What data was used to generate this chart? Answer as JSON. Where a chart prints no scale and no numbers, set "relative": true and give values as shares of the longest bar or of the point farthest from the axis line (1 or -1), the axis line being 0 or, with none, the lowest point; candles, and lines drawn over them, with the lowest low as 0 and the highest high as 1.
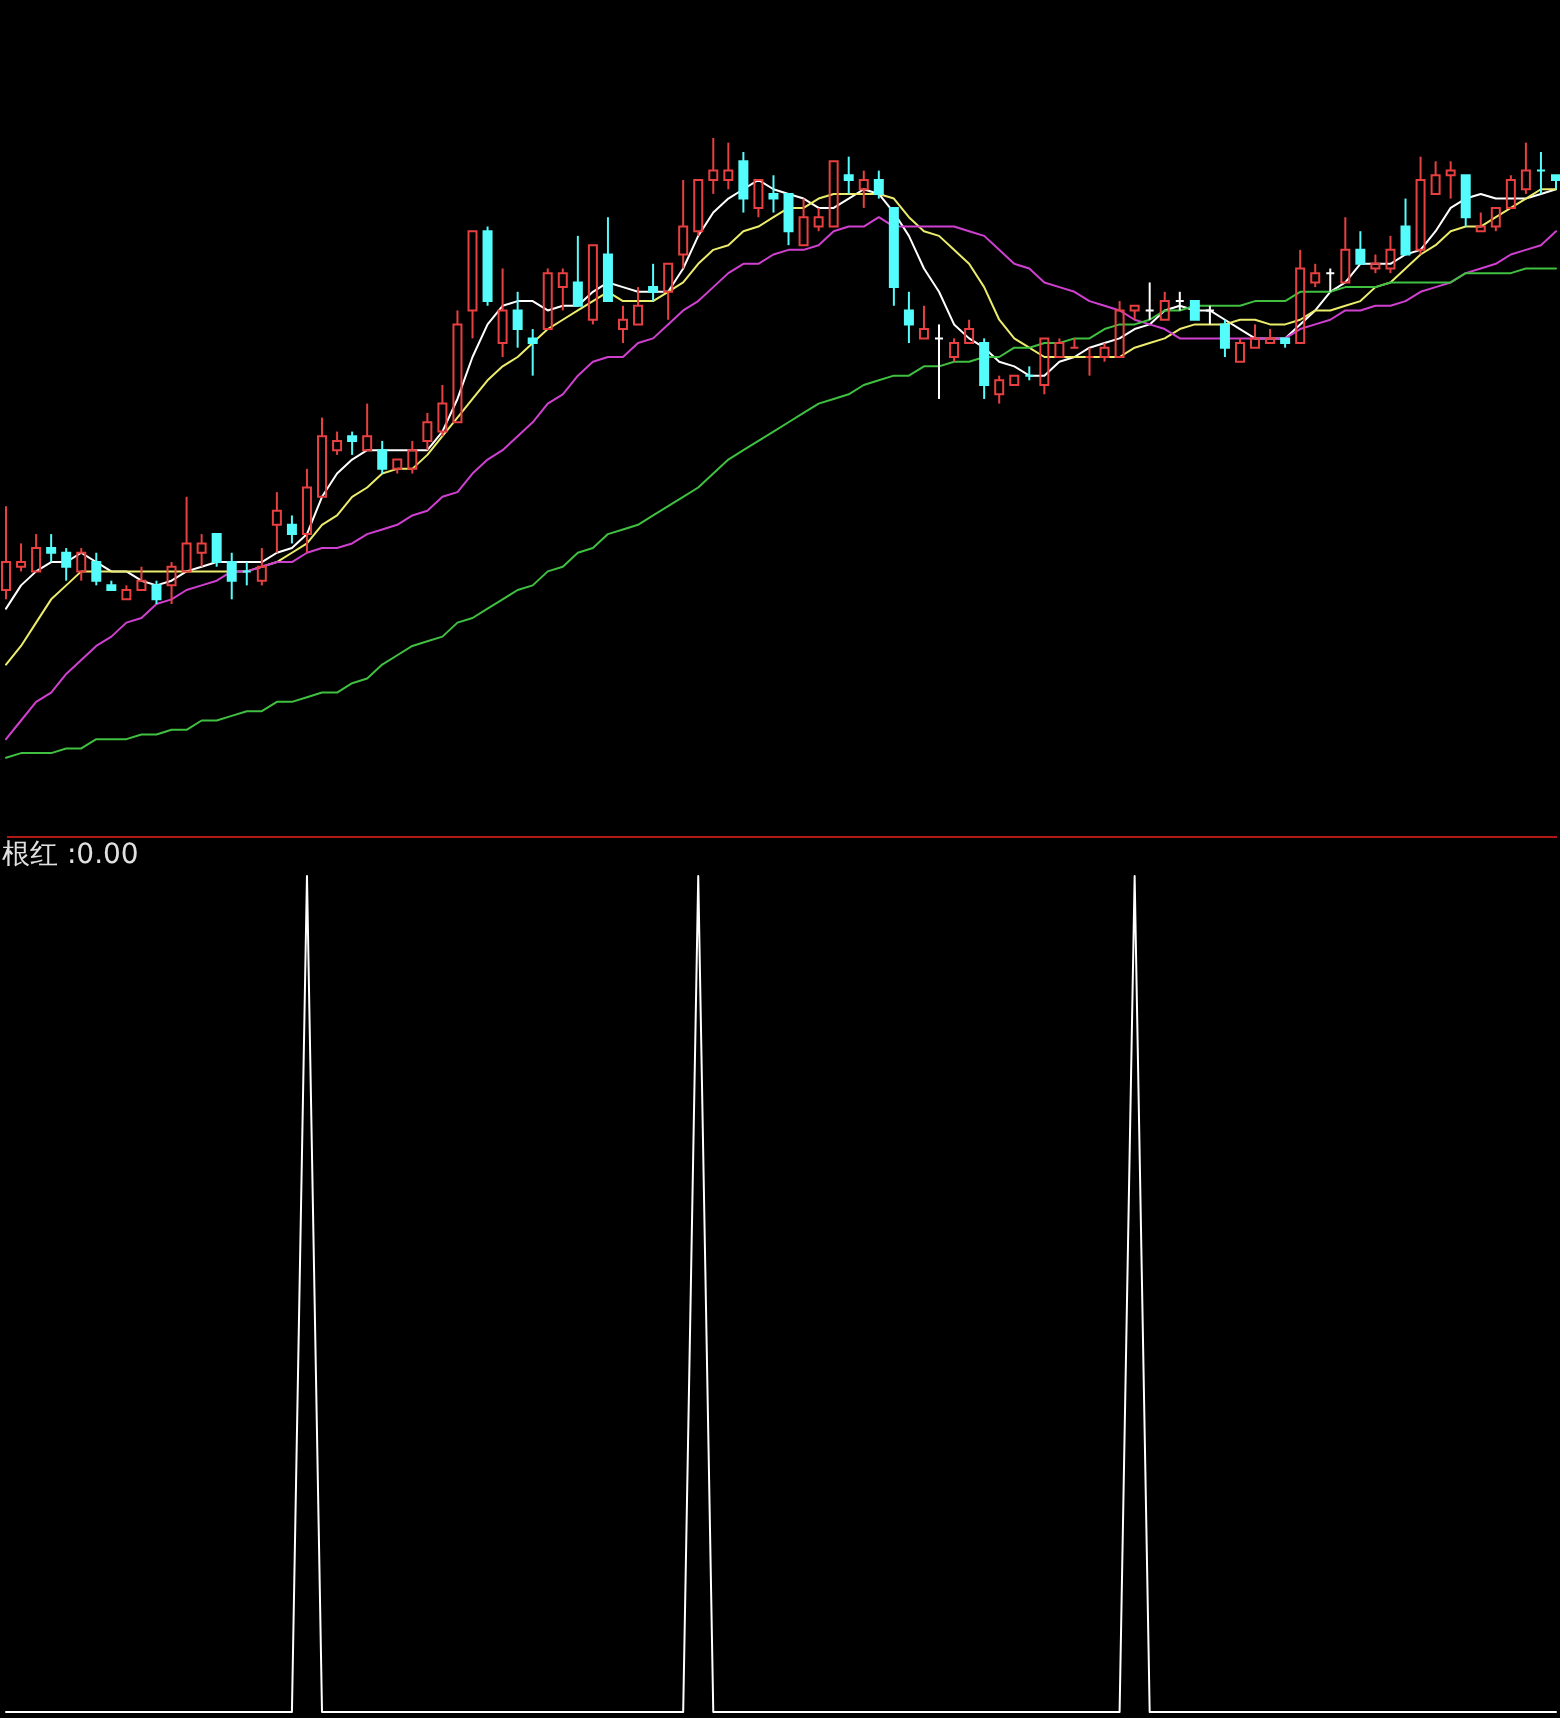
{
  "chart_data": [
    {
      "type": "candlestick",
      "relative": true,
      "categories": [
        null,
        null,
        null,
        null,
        null,
        null,
        null,
        null,
        null,
        null,
        null,
        null,
        null,
        null,
        null,
        null,
        null,
        null,
        null,
        null,
        null,
        null,
        null,
        null,
        null,
        null,
        null,
        null,
        null,
        null,
        null,
        null,
        null,
        null,
        null,
        null,
        null,
        null,
        null,
        null,
        null,
        null,
        null,
        null,
        null,
        null,
        null,
        null,
        null,
        null,
        null,
        null,
        null,
        null,
        null,
        null,
        null,
        null,
        null,
        null,
        null,
        null,
        null,
        null,
        null,
        null,
        null,
        null,
        null,
        null,
        null,
        null,
        null,
        null,
        null,
        null,
        null,
        null,
        null,
        null,
        null,
        null,
        null,
        null,
        null,
        null,
        null,
        null,
        null,
        null,
        null,
        null,
        null,
        null,
        null,
        null,
        null,
        null,
        null,
        null,
        null,
        null,
        null,
        null
      ],
      "ohlc": [
        [
          0.03,
          0.21,
          0.01,
          0.09
        ],
        [
          0.08,
          0.13,
          0.07,
          0.09
        ],
        [
          0.07,
          0.15,
          0.07,
          0.12
        ],
        [
          0.12,
          0.15,
          0.09,
          0.11
        ],
        [
          0.11,
          0.12,
          0.05,
          0.08
        ],
        [
          0.07,
          0.12,
          0.05,
          0.11
        ],
        [
          0.09,
          0.11,
          0.04,
          0.05
        ],
        [
          0.04,
          0.05,
          0.03,
          0.03
        ],
        [
          0.01,
          0.04,
          0.01,
          0.03
        ],
        [
          0.03,
          0.08,
          0.03,
          0.05
        ],
        [
          0.04,
          0.05,
          0,
          0.01
        ],
        [
          0.04,
          0.09,
          0,
          0.08
        ],
        [
          0.07,
          0.23,
          0.07,
          0.13
        ],
        [
          0.11,
          0.15,
          0.08,
          0.13
        ],
        [
          0.15,
          0.15,
          0.08,
          0.09
        ],
        [
          0.09,
          0.11,
          0.01,
          0.05
        ],
        [
          0.07,
          0.09,
          0.04,
          0.07
        ],
        [
          0.05,
          0.12,
          0.04,
          0.08
        ],
        [
          0.17,
          0.24,
          0.11,
          0.2
        ],
        [
          0.17,
          0.19,
          0.13,
          0.15
        ],
        [
          0.15,
          0.29,
          0.11,
          0.25
        ],
        [
          0.23,
          0.4,
          0.23,
          0.36
        ],
        [
          0.33,
          0.37,
          0.32,
          0.35
        ],
        [
          0.36,
          0.37,
          0.32,
          0.35
        ],
        [
          0.33,
          0.43,
          0.33,
          0.36
        ],
        [
          0.33,
          0.35,
          0.28,
          0.29
        ],
        [
          0.29,
          0.31,
          0.28,
          0.31
        ],
        [
          0.29,
          0.35,
          0.28,
          0.33
        ],
        [
          0.35,
          0.41,
          0.33,
          0.39
        ],
        [
          0.37,
          0.47,
          0.36,
          0.43
        ],
        [
          0.39,
          0.63,
          0.39,
          0.6
        ],
        [
          0.63,
          0.8,
          0.57,
          0.8
        ],
        [
          0.8,
          0.81,
          0.64,
          0.65
        ],
        [
          0.56,
          0.72,
          0.53,
          0.63
        ],
        [
          0.63,
          0.67,
          0.55,
          0.59
        ],
        [
          0.57,
          0.59,
          0.49,
          0.56
        ],
        [
          0.59,
          0.72,
          0.59,
          0.71
        ],
        [
          0.68,
          0.72,
          0.63,
          0.71
        ],
        [
          0.69,
          0.79,
          0.64,
          0.64
        ],
        [
          0.61,
          0.77,
          0.6,
          0.77
        ],
        [
          0.75,
          0.83,
          0.65,
          0.65
        ],
        [
          0.59,
          0.64,
          0.56,
          0.61
        ],
        [
          0.6,
          0.68,
          0.6,
          0.64
        ],
        [
          0.68,
          0.73,
          0.65,
          0.67
        ],
        [
          0.67,
          0.73,
          0.61,
          0.73
        ],
        [
          0.75,
          0.91,
          0.72,
          0.81
        ],
        [
          0.8,
          0.91,
          0.79,
          0.91
        ],
        [
          0.91,
          1,
          0.88,
          0.93
        ],
        [
          0.91,
          0.99,
          0.89,
          0.93
        ],
        [
          0.95,
          0.97,
          0.84,
          0.87
        ],
        [
          0.85,
          0.91,
          0.83,
          0.91
        ],
        [
          0.88,
          0.92,
          0.84,
          0.87
        ],
        [
          0.88,
          0.88,
          0.77,
          0.8
        ],
        [
          0.77,
          0.87,
          0.77,
          0.83
        ],
        [
          0.81,
          0.85,
          0.8,
          0.83
        ],
        [
          0.81,
          0.95,
          0.81,
          0.95
        ],
        [
          0.92,
          0.96,
          0.88,
          0.91
        ],
        [
          0.89,
          0.93,
          0.85,
          0.91
        ],
        [
          0.91,
          0.93,
          0.87,
          0.88
        ],
        [
          0.85,
          0.85,
          0.64,
          0.68
        ],
        [
          0.63,
          0.67,
          0.56,
          0.6
        ],
        [
          0.57,
          0.64,
          0.57,
          0.59
        ],
        [
          0.57,
          0.6,
          0.44,
          0.57
        ],
        [
          0.53,
          0.57,
          0.52,
          0.56
        ],
        [
          0.56,
          0.61,
          0.56,
          0.59
        ],
        [
          0.56,
          0.57,
          0.44,
          0.47
        ],
        [
          0.45,
          0.49,
          0.43,
          0.48
        ],
        [
          0.47,
          0.49,
          0.47,
          0.49
        ],
        [
          0.49,
          0.51,
          0.48,
          0.49
        ],
        [
          0.47,
          0.57,
          0.45,
          0.57
        ],
        [
          0.53,
          0.57,
          0.53,
          0.56
        ],
        [
          0.55,
          0.57,
          0.55,
          0.55
        ],
        [
          0.53,
          0.55,
          0.49,
          0.53
        ],
        [
          0.53,
          0.56,
          0.52,
          0.55
        ],
        [
          0.53,
          0.65,
          0.53,
          0.63
        ],
        [
          0.63,
          0.64,
          0.61,
          0.64
        ],
        [
          0.63,
          0.69,
          0.61,
          0.63
        ],
        [
          0.61,
          0.67,
          0.61,
          0.65
        ],
        [
          0.65,
          0.67,
          0.63,
          0.65
        ],
        [
          0.65,
          0.65,
          0.61,
          0.61
        ],
        [
          0.63,
          0.64,
          0.6,
          0.63
        ],
        [
          0.6,
          0.61,
          0.53,
          0.55
        ],
        [
          0.52,
          0.57,
          0.52,
          0.56
        ],
        [
          0.55,
          0.6,
          0.55,
          0.57
        ],
        [
          0.56,
          0.59,
          0.56,
          0.57
        ],
        [
          0.57,
          0.57,
          0.55,
          0.56
        ],
        [
          0.56,
          0.76,
          0.56,
          0.72
        ],
        [
          0.69,
          0.73,
          0.68,
          0.71
        ],
        [
          0.71,
          0.72,
          0.67,
          0.71
        ],
        [
          0.69,
          0.83,
          0.69,
          0.76
        ],
        [
          0.76,
          0.8,
          0.73,
          0.73
        ],
        [
          0.72,
          0.75,
          0.71,
          0.73
        ],
        [
          0.72,
          0.79,
          0.71,
          0.76
        ],
        [
          0.81,
          0.87,
          0.75,
          0.75
        ],
        [
          0.76,
          0.96,
          0.75,
          0.91
        ],
        [
          0.88,
          0.95,
          0.88,
          0.92
        ],
        [
          0.92,
          0.95,
          0.87,
          0.93
        ],
        [
          0.92,
          0.92,
          0.81,
          0.83
        ],
        [
          0.8,
          0.84,
          0.8,
          0.81
        ],
        [
          0.81,
          0.85,
          0.8,
          0.85
        ],
        [
          0.85,
          0.92,
          0.85,
          0.91
        ],
        [
          0.89,
          0.99,
          0.88,
          0.93
        ],
        [
          0.93,
          0.97,
          0.88,
          0.93
        ],
        [
          0.92,
          0.92,
          0.89,
          0.91
        ]
      ],
      "colors": [
        "#e84040",
        "#e84040",
        "#e84040",
        "#54fcfc",
        "#54fcfc",
        "#e84040",
        "#54fcfc",
        "#54fcfc",
        "#e84040",
        "#e84040",
        "#54fcfc",
        "#e84040",
        "#e84040",
        "#e84040",
        "#54fcfc",
        "#54fcfc",
        "#54fcfc",
        "#e84040",
        "#e84040",
        "#54fcfc",
        "#e84040",
        "#e84040",
        "#e84040",
        "#54fcfc",
        "#e84040",
        "#54fcfc",
        "#e84040",
        "#e84040",
        "#e84040",
        "#e84040",
        "#e84040",
        "#e84040",
        "#54fcfc",
        "#e84040",
        "#54fcfc",
        "#54fcfc",
        "#e84040",
        "#e84040",
        "#54fcfc",
        "#e84040",
        "#54fcfc",
        "#e84040",
        "#e84040",
        "#54fcfc",
        "#e84040",
        "#e84040",
        "#e84040",
        "#e84040",
        "#e84040",
        "#54fcfc",
        "#e84040",
        "#54fcfc",
        "#54fcfc",
        "#e84040",
        "#e84040",
        "#e84040",
        "#54fcfc",
        "#e84040",
        "#54fcfc",
        "#54fcfc",
        "#54fcfc",
        "#e84040",
        "#ffffff",
        "#e84040",
        "#e84040",
        "#54fcfc",
        "#e84040",
        "#e84040",
        "#54fcfc",
        "#e84040",
        "#e84040",
        "#e84040",
        "#e84040",
        "#e84040",
        "#e84040",
        "#e84040",
        "#ffffff",
        "#e84040",
        "#ffffff",
        "#54fcfc",
        "#ffffff",
        "#54fcfc",
        "#e84040",
        "#e84040",
        "#e84040",
        "#54fcfc",
        "#e84040",
        "#e84040",
        "#ffffff",
        "#e84040",
        "#54fcfc",
        "#e84040",
        "#e84040",
        "#54fcfc",
        "#e84040",
        "#e84040",
        "#e84040",
        "#54fcfc",
        "#e84040",
        "#e84040",
        "#e84040",
        "#e84040",
        "#54fcfc",
        "#54fcfc"
      ],
      "series": [
        {
          "type": "line",
          "color": "#ffffff",
          "values": [
            -0.01,
            0.04,
            0.07,
            0.09,
            0.09,
            0.11,
            0.09,
            0.07,
            0.07,
            0.05,
            0.04,
            0.05,
            0.07,
            0.08,
            0.09,
            0.09,
            0.09,
            0.09,
            0.11,
            0.12,
            0.15,
            0.23,
            0.28,
            0.31,
            0.33,
            0.33,
            0.33,
            0.33,
            0.33,
            0.37,
            0.44,
            0.53,
            0.6,
            0.64,
            0.65,
            0.65,
            0.63,
            0.64,
            0.64,
            0.67,
            0.69,
            0.68,
            0.67,
            0.67,
            0.67,
            0.72,
            0.79,
            0.84,
            0.87,
            0.89,
            0.91,
            0.89,
            0.88,
            0.87,
            0.85,
            0.85,
            0.87,
            0.89,
            0.88,
            0.84,
            0.79,
            0.72,
            0.67,
            0.6,
            0.57,
            0.55,
            0.52,
            0.51,
            0.49,
            0.49,
            0.52,
            0.53,
            0.55,
            0.56,
            0.57,
            0.59,
            0.6,
            0.63,
            0.64,
            0.63,
            0.63,
            0.61,
            0.59,
            0.57,
            0.57,
            0.57,
            0.6,
            0.63,
            0.67,
            0.69,
            0.73,
            0.73,
            0.73,
            0.75,
            0.76,
            0.8,
            0.85,
            0.87,
            0.88,
            0.87,
            0.87,
            0.87,
            0.88,
            0.89
          ]
        },
        {
          "type": "line",
          "color": "#ecec6c",
          "values": [
            -0.13,
            -0.09,
            -0.04,
            0.01,
            0.04,
            0.07,
            0.07,
            0.07,
            0.07,
            0.07,
            0.07,
            0.07,
            0.07,
            0.07,
            0.07,
            0.07,
            0.07,
            0.08,
            0.09,
            0.11,
            0.13,
            0.17,
            0.19,
            0.23,
            0.25,
            0.28,
            0.29,
            0.29,
            0.32,
            0.36,
            0.4,
            0.44,
            0.48,
            0.51,
            0.53,
            0.56,
            0.59,
            0.61,
            0.63,
            0.65,
            0.67,
            0.65,
            0.65,
            0.65,
            0.67,
            0.69,
            0.73,
            0.76,
            0.77,
            0.8,
            0.81,
            0.83,
            0.85,
            0.85,
            0.87,
            0.88,
            0.88,
            0.88,
            0.88,
            0.87,
            0.83,
            0.8,
            0.79,
            0.76,
            0.73,
            0.68,
            0.61,
            0.57,
            0.55,
            0.53,
            0.53,
            0.53,
            0.53,
            0.53,
            0.53,
            0.55,
            0.56,
            0.57,
            0.59,
            0.6,
            0.6,
            0.6,
            0.61,
            0.61,
            0.6,
            0.6,
            0.61,
            0.63,
            0.63,
            0.64,
            0.65,
            0.68,
            0.69,
            0.72,
            0.75,
            0.77,
            0.8,
            0.81,
            0.81,
            0.83,
            0.85,
            0.87,
            0.89,
            0.89
          ]
        },
        {
          "type": "line",
          "color": "#d040d0",
          "values": [
            -0.29,
            -0.25,
            -0.21,
            -0.19,
            -0.15,
            -0.12,
            -0.09,
            -0.07,
            -0.04,
            -0.03,
            0,
            0.01,
            0.03,
            0.04,
            0.05,
            0.07,
            0.07,
            0.08,
            0.09,
            0.09,
            0.11,
            0.12,
            0.12,
            0.13,
            0.15,
            0.16,
            0.17,
            0.19,
            0.2,
            0.23,
            0.24,
            0.28,
            0.31,
            0.33,
            0.36,
            0.39,
            0.43,
            0.45,
            0.49,
            0.52,
            0.53,
            0.53,
            0.56,
            0.57,
            0.6,
            0.63,
            0.65,
            0.68,
            0.71,
            0.73,
            0.73,
            0.75,
            0.76,
            0.76,
            0.77,
            0.8,
            0.81,
            0.81,
            0.83,
            0.81,
            0.81,
            0.81,
            0.81,
            0.81,
            0.8,
            0.79,
            0.76,
            0.73,
            0.72,
            0.69,
            0.68,
            0.67,
            0.65,
            0.64,
            0.63,
            0.61,
            0.6,
            0.59,
            0.57,
            0.57,
            0.57,
            0.57,
            0.57,
            0.57,
            0.57,
            0.57,
            0.59,
            0.6,
            0.61,
            0.63,
            0.63,
            0.64,
            0.64,
            0.65,
            0.67,
            0.68,
            0.69,
            0.71,
            0.72,
            0.73,
            0.75,
            0.76,
            0.77,
            0.8
          ]
        },
        {
          "type": "line",
          "color": "#40c040",
          "values": [
            -0.33,
            -0.32,
            -0.32,
            -0.32,
            -0.31,
            -0.31,
            -0.29,
            -0.29,
            -0.29,
            -0.28,
            -0.28,
            -0.27,
            -0.27,
            -0.25,
            -0.25,
            -0.24,
            -0.23,
            -0.23,
            -0.21,
            -0.21,
            -0.2,
            -0.19,
            -0.19,
            -0.17,
            -0.16,
            -0.13,
            -0.11,
            -0.09,
            -0.08,
            -0.07,
            -0.04,
            -0.03,
            -0.01,
            0.01,
            0.03,
            0.04,
            0.07,
            0.08,
            0.11,
            0.12,
            0.15,
            0.16,
            0.17,
            0.19,
            0.21,
            0.23,
            0.25,
            0.28,
            0.31,
            0.33,
            0.35,
            0.37,
            0.39,
            0.41,
            0.43,
            0.44,
            0.45,
            0.47,
            0.48,
            0.49,
            0.49,
            0.51,
            0.51,
            0.52,
            0.52,
            0.53,
            0.53,
            0.55,
            0.55,
            0.56,
            0.56,
            0.57,
            0.57,
            0.59,
            0.6,
            0.6,
            0.61,
            0.63,
            0.63,
            0.64,
            0.64,
            0.64,
            0.64,
            0.65,
            0.65,
            0.65,
            0.67,
            0.67,
            0.67,
            0.68,
            0.68,
            0.68,
            0.69,
            0.69,
            0.69,
            0.69,
            0.69,
            0.71,
            0.71,
            0.71,
            0.71,
            0.72,
            0.72,
            0.72
          ]
        }
      ]
    },
    {
      "type": "line",
      "title": "根红 :0.00",
      "relative": true,
      "color": "#ffffff",
      "categories": [
        null,
        null,
        null,
        null,
        null,
        null,
        null,
        null,
        null,
        null,
        null,
        null,
        null,
        null,
        null,
        null,
        null,
        null,
        null,
        null,
        null,
        null,
        null,
        null,
        null,
        null,
        null,
        null,
        null,
        null,
        null,
        null,
        null,
        null,
        null,
        null,
        null,
        null,
        null,
        null,
        null,
        null,
        null,
        null,
        null,
        null,
        null,
        null,
        null,
        null,
        null,
        null,
        null,
        null,
        null,
        null,
        null,
        null,
        null,
        null,
        null,
        null,
        null,
        null,
        null,
        null,
        null,
        null,
        null,
        null,
        null,
        null,
        null,
        null,
        null,
        null,
        null,
        null,
        null,
        null,
        null,
        null,
        null,
        null,
        null,
        null,
        null,
        null,
        null,
        null,
        null,
        null,
        null,
        null,
        null,
        null,
        null,
        null,
        null,
        null,
        null,
        null,
        null,
        null
      ],
      "values": [
        0,
        0,
        0,
        0,
        0,
        0,
        0,
        0,
        0,
        0,
        0,
        0,
        0,
        0,
        0,
        0,
        0,
        0,
        0,
        0,
        1,
        0,
        0,
        0,
        0,
        0,
        0,
        0,
        0,
        0,
        0,
        0,
        0,
        0,
        0,
        0,
        0,
        0,
        0,
        0,
        0,
        0,
        0,
        0,
        0,
        0,
        1,
        0,
        0,
        0,
        0,
        0,
        0,
        0,
        0,
        0,
        0,
        0,
        0,
        0,
        0,
        0,
        0,
        0,
        0,
        0,
        0,
        0,
        0,
        0,
        0,
        0,
        0,
        0,
        0,
        1,
        0,
        0,
        0,
        0,
        0,
        0,
        0,
        0,
        0,
        0,
        0,
        0,
        0,
        0,
        0,
        0,
        0,
        0,
        0,
        0,
        0,
        0,
        0,
        0,
        0,
        0,
        0,
        0
      ]
    }
  ]
}
